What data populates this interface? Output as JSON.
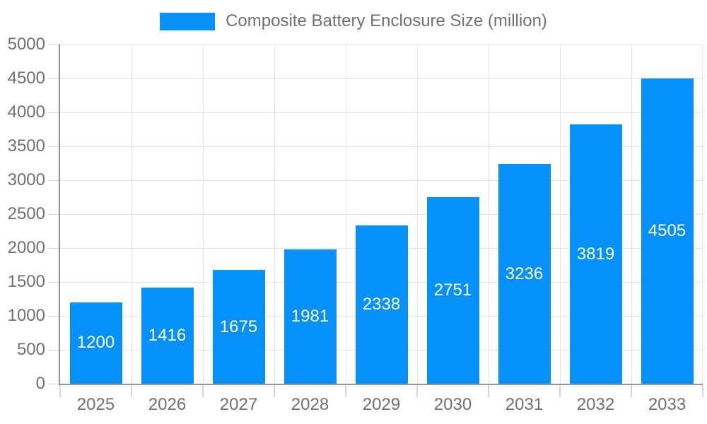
{
  "legend": {
    "items": [
      {
        "label": "Composite Battery Enclosure Size (million)",
        "color": "#0590fa"
      }
    ]
  },
  "chart_data": {
    "type": "bar",
    "title": "Composite Battery Enclosure Size (million)",
    "series_name": "Composite Battery Enclosure Size (million)",
    "categories": [
      "2025",
      "2026",
      "2027",
      "2028",
      "2029",
      "2030",
      "2031",
      "2032",
      "2033"
    ],
    "values": [
      1200,
      1416,
      1675,
      1981,
      2338,
      2751,
      3236,
      3819,
      4505
    ],
    "xlabel": "",
    "ylabel": "",
    "ylim": [
      0,
      5000
    ],
    "ytick_step": 500,
    "ytick_labels": [
      "0",
      "500",
      "1000",
      "1500",
      "2000",
      "2500",
      "3000",
      "3500",
      "4000",
      "4500",
      "5000"
    ],
    "grid": true,
    "legend_position": "top",
    "value_labels_shown": true,
    "colors": {
      "bar": "#0590fa",
      "value_label": "#ffffff",
      "axis": "#949494",
      "tick": "#d4d4d4",
      "grid": "#e3e3e3",
      "text": "#707070"
    }
  }
}
